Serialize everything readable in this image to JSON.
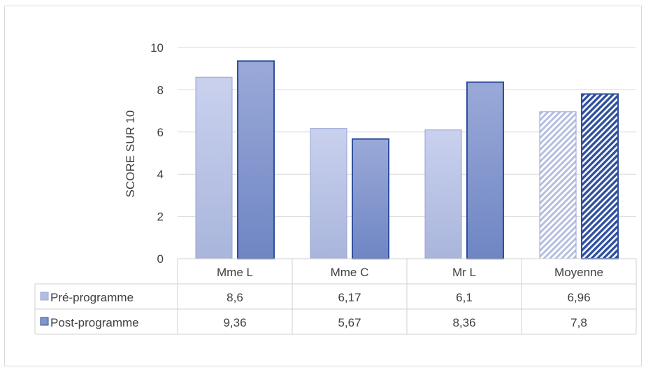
{
  "chart_data": {
    "type": "bar",
    "title": "",
    "xlabel": "",
    "ylabel": "SCORE SUR 10",
    "ylim": [
      0,
      10
    ],
    "yticks": [
      0,
      2,
      4,
      6,
      8,
      10
    ],
    "grid": true,
    "legend": "data-table",
    "categories": [
      "Mme L",
      "Mme C",
      "Mr L",
      "Moyenne"
    ],
    "series": [
      {
        "name": "Pré-programme",
        "values": [
          8.6,
          6.17,
          6.1,
          6.96
        ],
        "labels": [
          "8,6",
          "6,17",
          "6,1",
          "6,96"
        ],
        "color": "#b4bfe0"
      },
      {
        "name": "Post-programme",
        "values": [
          9.36,
          5.67,
          8.36,
          7.8
        ],
        "labels": [
          "9,36",
          "5,67",
          "8,36",
          "7,8"
        ],
        "color": "#7f95cc"
      }
    ],
    "hatched_categories": [
      "Moyenne"
    ]
  }
}
